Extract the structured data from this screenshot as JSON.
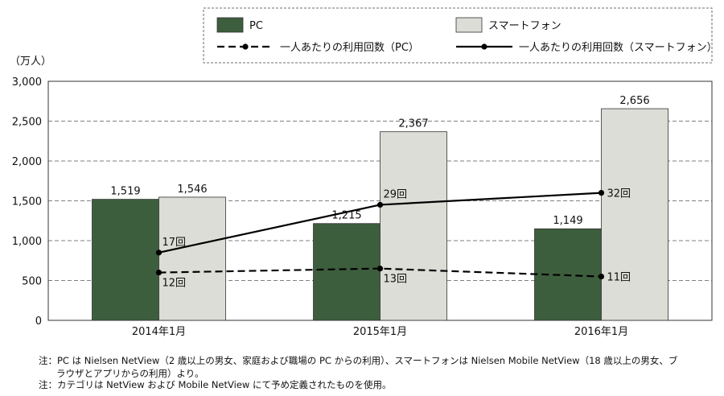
{
  "chart_data": {
    "type": "bar",
    "unit_label": "（万人）",
    "categories": [
      "2014年1月",
      "2015年1月",
      "2016年1月"
    ],
    "ylim": [
      0,
      3000
    ],
    "yticks": [
      0,
      500,
      1000,
      1500,
      2000,
      2500,
      3000
    ],
    "ytick_labels": [
      "0",
      "500",
      "1,000",
      "1,500",
      "2,000",
      "2,500",
      "3,000"
    ],
    "grid": true,
    "legend_position": "top-right",
    "series": [
      {
        "name": "PC",
        "values": [
          1519,
          1215,
          1149
        ],
        "labels": [
          "1,519",
          "1,215",
          "1,149"
        ],
        "color": "#3d5e3d"
      },
      {
        "name": "スマートフォン",
        "values": [
          1546,
          2367,
          2656
        ],
        "labels": [
          "1,546",
          "2,367",
          "2,656"
        ],
        "color": "#dcddd6"
      }
    ],
    "lines": [
      {
        "name": "一人あたりの利用回数（PC）",
        "style": "dashed",
        "values": [
          12,
          13,
          11
        ],
        "labels": [
          "12回",
          "13回",
          "11回"
        ],
        "color": "#000000"
      },
      {
        "name": "一人あたりの利用回数（スマートフォン）",
        "style": "solid",
        "values": [
          17,
          29,
          32
        ],
        "labels": [
          "17回",
          "29回",
          "32回"
        ],
        "color": "#000000"
      }
    ]
  },
  "notes": [
    "注：PC は Nielsen NetView（2 歳以上の男女、家庭および職場の PC からの利用）、スマートフォンは Nielsen Mobile NetView（18 歳以上の男女、ブ",
    "ラウザとアプリからの利用）より。",
    "注：カテゴリは NetView および Mobile NetView にて予め定義されたものを使用。"
  ]
}
